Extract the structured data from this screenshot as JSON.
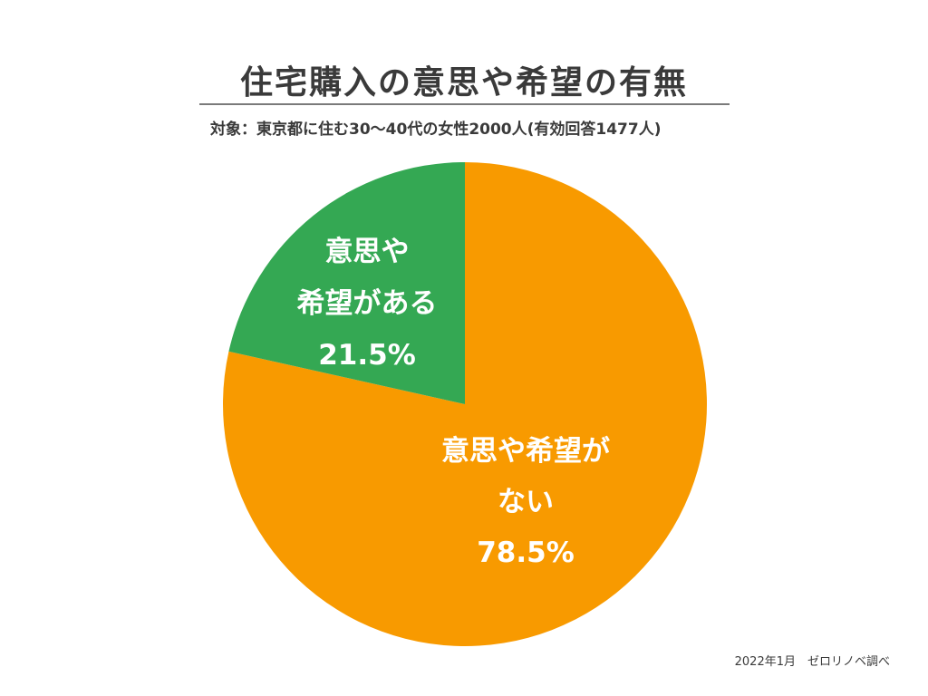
{
  "header": {
    "title": "住宅購入の意思や希望の有無",
    "subtitle": "対象：東京都に住む30〜40代の女性2000人(有効回答1477人)"
  },
  "footer": {
    "source": "2022年1月　ゼロリノベ調べ"
  },
  "chart_data": {
    "type": "pie",
    "title": "住宅購入の意思や希望の有無",
    "start_angle_deg": 0,
    "direction": "clockwise",
    "slices": [
      {
        "name": "意思や希望がない",
        "value": 78.5,
        "label": "78.5%",
        "color": "#f89a00"
      },
      {
        "name": "意思や希望がある",
        "value": 21.5,
        "label": "21.5%",
        "color": "#34a853"
      }
    ]
  },
  "labels": {
    "yes": {
      "line1": "意思や",
      "line2": "希望がある",
      "value": "21.5%"
    },
    "no": {
      "line1": "意思や希望が",
      "line2": "ない",
      "value": "78.5%"
    }
  }
}
